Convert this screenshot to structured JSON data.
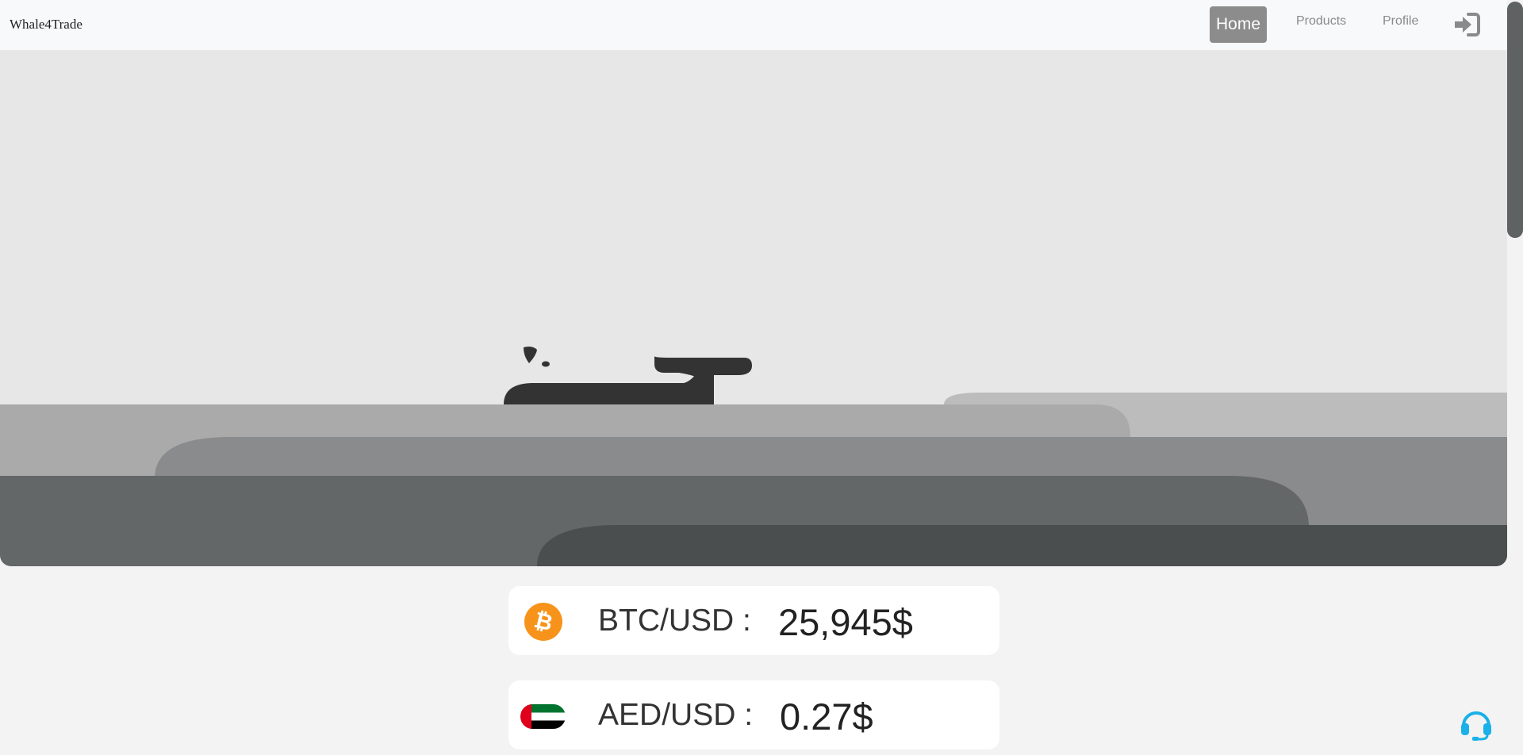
{
  "navbar": {
    "brand": "Whale4Trade",
    "items": [
      {
        "label": "Home",
        "active": true
      },
      {
        "label": "Products",
        "active": false
      },
      {
        "label": "Profile",
        "active": false
      }
    ],
    "login_icon": "sign-in-icon"
  },
  "hero": {
    "illustration": "whale-waves-illustration"
  },
  "rates": [
    {
      "icon": "bitcoin-icon",
      "pair": "BTC/USD :",
      "value": "25,945$"
    },
    {
      "icon": "uae-flag-icon",
      "pair": "AED/USD :",
      "value": "0.27$"
    }
  ],
  "support_icon": "headset-icon",
  "colors": {
    "active_nav": "#8c8c8c",
    "bitcoin": "#f7931a",
    "support": "#1ab0e8"
  }
}
